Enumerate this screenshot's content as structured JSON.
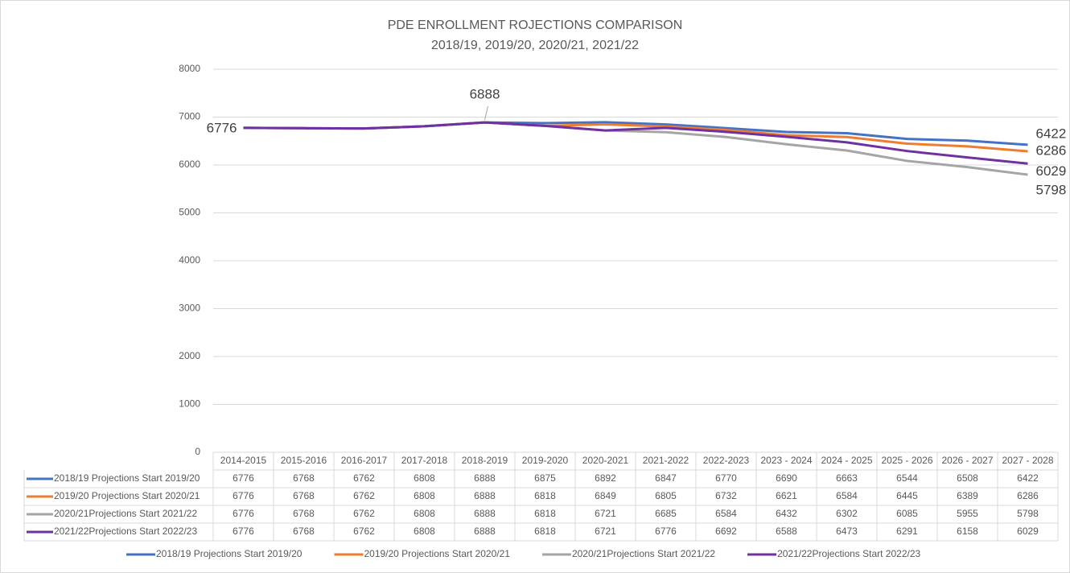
{
  "chart_data": {
    "type": "line",
    "title": "PDE ENROLLMENT ROJECTIONS COMPARISON",
    "subtitle": "2018/19, 2019/20, 2020/21, 2021/22",
    "categories": [
      "2014-2015",
      "2015-2016",
      "2016-2017",
      "2017-2018",
      "2018-2019",
      "2019-2020",
      "2020-2021",
      "2021-2022",
      "2022-2023",
      "2023 - 2024",
      "2024 - 2025",
      "2025 - 2026",
      "2026 - 2027",
      "2027 - 2028"
    ],
    "series": [
      {
        "name": "2018/19 Projections Start 2019/20",
        "color": "#4472c4",
        "values": [
          6776,
          6768,
          6762,
          6808,
          6888,
          6875,
          6892,
          6847,
          6770,
          6690,
          6663,
          6544,
          6508,
          6422
        ]
      },
      {
        "name": "2019/20 Projections Start 2020/21",
        "color": "#ed7d31",
        "values": [
          6776,
          6768,
          6762,
          6808,
          6888,
          6818,
          6849,
          6805,
          6732,
          6621,
          6584,
          6445,
          6389,
          6286
        ]
      },
      {
        "name": "2020/21Projections Start 2021/22",
        "color": "#a5a5a5",
        "values": [
          6776,
          6768,
          6762,
          6808,
          6888,
          6818,
          6721,
          6685,
          6584,
          6432,
          6302,
          6085,
          5955,
          5798
        ]
      },
      {
        "name": "2021/22Projections Start 2022/23",
        "color": "#7030a0",
        "values": [
          6776,
          6768,
          6762,
          6808,
          6888,
          6818,
          6721,
          6776,
          6692,
          6588,
          6473,
          6291,
          6158,
          6029
        ]
      }
    ],
    "ylim": [
      0,
      8000
    ],
    "yticks": [
      0,
      1000,
      2000,
      3000,
      4000,
      5000,
      6000,
      7000,
      8000
    ],
    "grid": true,
    "legend": "bottom"
  }
}
